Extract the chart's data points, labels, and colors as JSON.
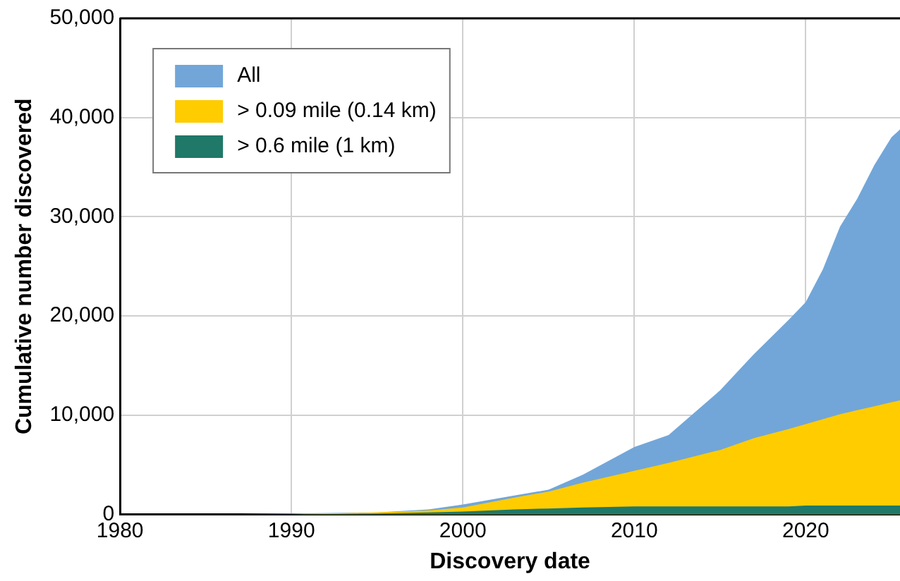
{
  "chart_data": {
    "type": "area",
    "xlabel": "Discovery date",
    "ylabel": "Cumulative number discovered",
    "xlim": [
      1980,
      2025.5
    ],
    "xticks": [
      1980,
      1990,
      2000,
      2010,
      2020
    ],
    "ylim": [
      0,
      50000
    ],
    "yticks": [
      {
        "value": 0,
        "label": "0"
      },
      {
        "value": 10000,
        "label": "10,000"
      },
      {
        "value": 20000,
        "label": "20,000"
      },
      {
        "value": 30000,
        "label": "30,000"
      },
      {
        "value": 40000,
        "label": "40,000"
      },
      {
        "value": 50000,
        "label": "50,000"
      }
    ],
    "grid": true,
    "legend": "top left",
    "x": [
      1980,
      1985,
      1990,
      1995,
      1998,
      2000,
      2003,
      2005,
      2007,
      2010,
      2012,
      2015,
      2017,
      2019,
      2020,
      2021,
      2022,
      2023,
      2024,
      2025,
      2025.5
    ],
    "series": [
      {
        "name": "All",
        "color": "#72a6d8",
        "values": [
          0,
          0,
          100,
          200,
          500,
          1000,
          1900,
          2500,
          4000,
          6800,
          8000,
          12500,
          16200,
          19600,
          21400,
          24700,
          29000,
          31800,
          35200,
          38000,
          38800
        ]
      },
      {
        "name": "> 0.09 mile (0.14 km)",
        "color": "#ffcc00",
        "values": [
          0,
          0,
          0,
          200,
          400,
          700,
          1700,
          2300,
          3200,
          4400,
          5200,
          6500,
          7700,
          8600,
          9100,
          9600,
          10100,
          10500,
          10900,
          11300,
          11500
        ]
      },
      {
        "name": "> 0.6 mile (1 km)",
        "color": "#1f7868",
        "values": [
          0,
          0,
          0,
          100,
          200,
          300,
          500,
          600,
          700,
          800,
          800,
          800,
          800,
          800,
          900,
          900,
          900,
          900,
          900,
          900,
          900
        ]
      }
    ]
  }
}
